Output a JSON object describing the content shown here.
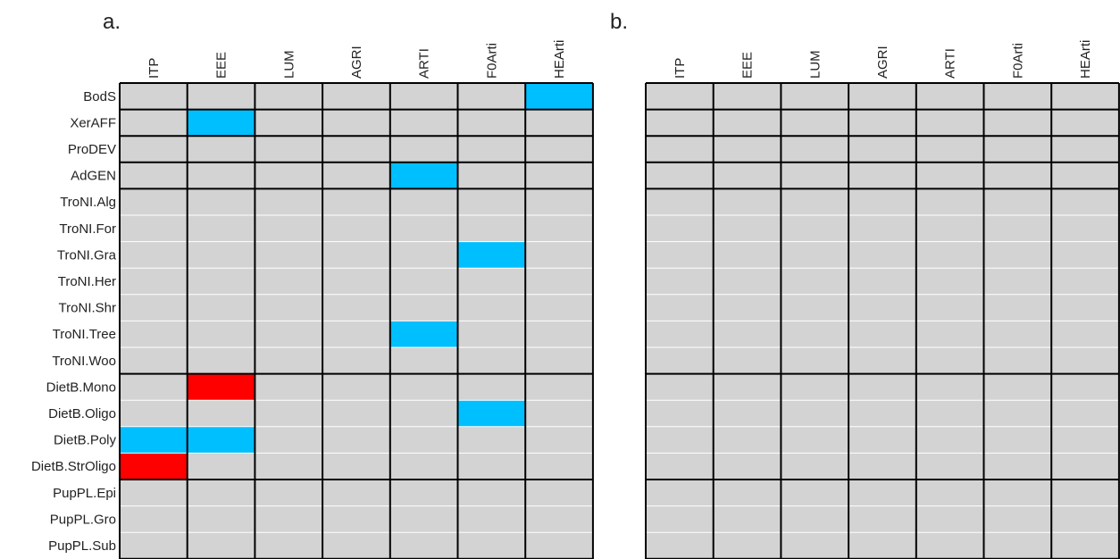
{
  "colors": {
    "neutral": "#d3d3d3",
    "positive": "#00bfff",
    "negative": "#ff0000",
    "grid_major": "#000000",
    "grid_minor": "#ffffff"
  },
  "chart_data": [
    {
      "type": "heatmap",
      "panel_label": "a.",
      "columns": [
        "ITP",
        "EEE",
        "LUM",
        "AGRI",
        "ARTI",
        "F0Arti",
        "HEArti"
      ],
      "rows": [
        "BodS",
        "XerAFF",
        "ProDEV",
        "AdGEN",
        "TroNI.Alg",
        "TroNI.For",
        "TroNI.Gra",
        "TroNI.Her",
        "TroNI.Shr",
        "TroNI.Tree",
        "TroNI.Woo",
        "DietB.Mono",
        "DietB.Oligo",
        "DietB.Poly",
        "DietB.StrOligo",
        "PupPL.Epi",
        "PupPL.Gro",
        "PupPL.Sub"
      ],
      "row_groups": [
        [
          "BodS"
        ],
        [
          "XerAFF"
        ],
        [
          "ProDEV"
        ],
        [
          "AdGEN"
        ],
        [
          "TroNI.Alg",
          "TroNI.For",
          "TroNI.Gra",
          "TroNI.Her",
          "TroNI.Shr",
          "TroNI.Tree",
          "TroNI.Woo"
        ],
        [
          "DietB.Mono",
          "DietB.Oligo",
          "DietB.Poly",
          "DietB.StrOligo"
        ],
        [
          "PupPL.Epi",
          "PupPL.Gro",
          "PupPL.Sub"
        ]
      ],
      "values": [
        [
          0,
          0,
          0,
          0,
          0,
          0,
          1
        ],
        [
          0,
          1,
          0,
          0,
          0,
          0,
          0
        ],
        [
          0,
          0,
          0,
          0,
          0,
          0,
          0
        ],
        [
          0,
          0,
          0,
          0,
          1,
          0,
          0
        ],
        [
          0,
          0,
          0,
          0,
          0,
          0,
          0
        ],
        [
          0,
          0,
          0,
          0,
          0,
          0,
          0
        ],
        [
          0,
          0,
          0,
          0,
          0,
          1,
          0
        ],
        [
          0,
          0,
          0,
          0,
          0,
          0,
          0
        ],
        [
          0,
          0,
          0,
          0,
          0,
          0,
          0
        ],
        [
          0,
          0,
          0,
          0,
          1,
          0,
          0
        ],
        [
          0,
          0,
          0,
          0,
          0,
          0,
          0
        ],
        [
          0,
          -1,
          0,
          0,
          0,
          0,
          0
        ],
        [
          0,
          0,
          0,
          0,
          0,
          1,
          0
        ],
        [
          1,
          1,
          0,
          0,
          0,
          0,
          0
        ],
        [
          -1,
          0,
          0,
          0,
          0,
          0,
          0
        ],
        [
          0,
          0,
          0,
          0,
          0,
          0,
          0
        ],
        [
          0,
          0,
          0,
          0,
          0,
          0,
          0
        ],
        [
          0,
          0,
          0,
          0,
          0,
          0,
          0
        ]
      ],
      "grid": true
    },
    {
      "type": "heatmap",
      "panel_label": "b.",
      "columns": [
        "ITP",
        "EEE",
        "LUM",
        "AGRI",
        "ARTI",
        "F0Arti",
        "HEArti"
      ],
      "rows": [],
      "row_groups_count": 7,
      "values": [
        [
          0,
          0,
          0,
          0,
          0,
          0,
          0
        ],
        [
          0,
          0,
          0,
          0,
          0,
          0,
          0
        ],
        [
          0,
          0,
          0,
          0,
          0,
          0,
          0
        ],
        [
          0,
          0,
          0,
          0,
          0,
          0,
          0
        ],
        [
          0,
          0,
          0,
          0,
          0,
          0,
          0
        ],
        [
          0,
          0,
          0,
          0,
          0,
          0,
          0
        ],
        [
          0,
          0,
          0,
          0,
          0,
          0,
          0
        ],
        [
          0,
          0,
          0,
          0,
          0,
          0,
          0
        ],
        [
          0,
          0,
          0,
          0,
          0,
          0,
          0
        ],
        [
          0,
          0,
          0,
          0,
          0,
          0,
          0
        ],
        [
          0,
          0,
          0,
          0,
          0,
          0,
          0
        ],
        [
          0,
          0,
          0,
          0,
          0,
          0,
          0
        ],
        [
          0,
          0,
          0,
          0,
          0,
          0,
          0
        ],
        [
          0,
          0,
          0,
          0,
          0,
          0,
          0
        ],
        [
          0,
          0,
          0,
          0,
          0,
          0,
          0
        ],
        [
          0,
          0,
          0,
          0,
          0,
          0,
          0
        ],
        [
          0,
          0,
          0,
          0,
          0,
          0,
          0
        ],
        [
          0,
          0,
          0,
          0,
          0,
          0,
          0
        ]
      ],
      "grid": true
    }
  ]
}
